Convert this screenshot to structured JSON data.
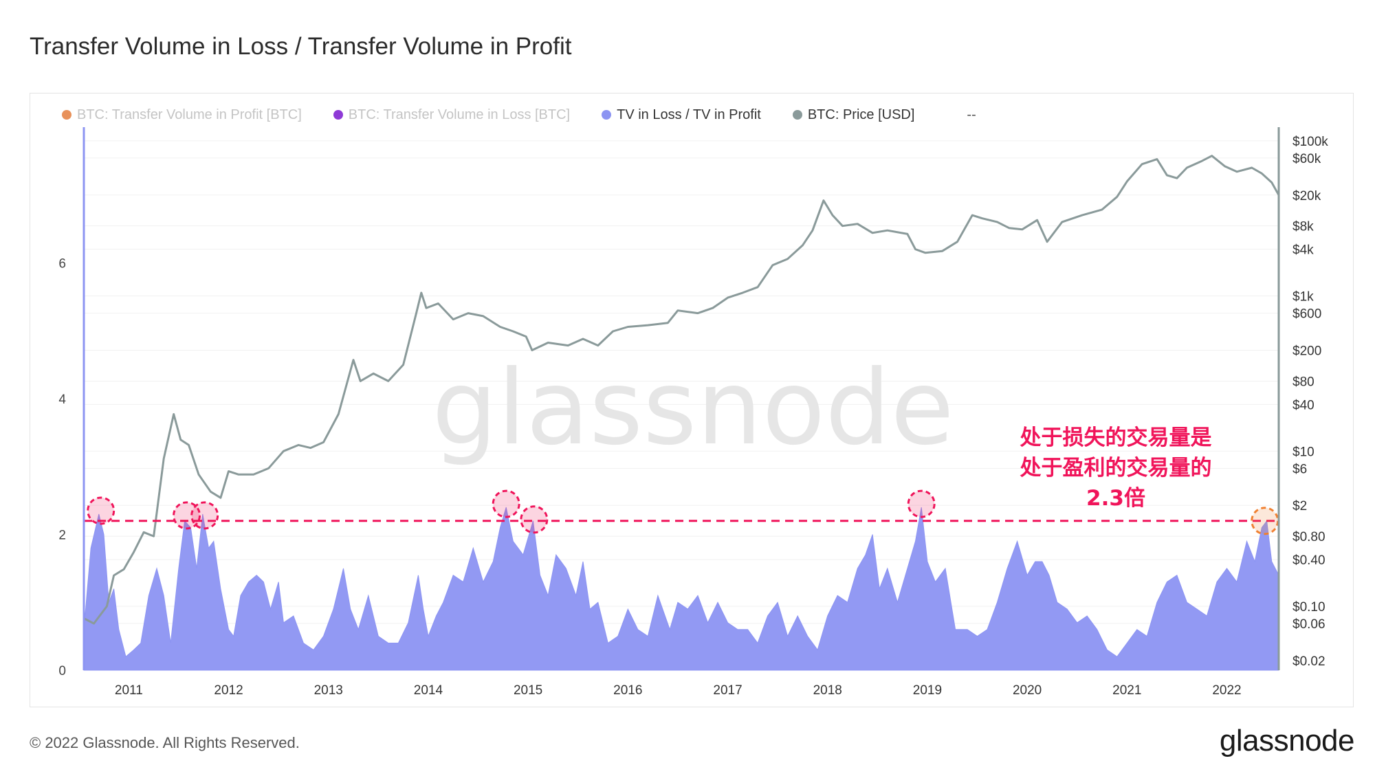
{
  "header": {
    "title": "Transfer Volume in Loss / Transfer Volume in Profit"
  },
  "legend": {
    "items": [
      {
        "label": "BTC: Transfer Volume in Profit [BTC]",
        "color": "#e8915a",
        "active": false
      },
      {
        "label": "BTC: Transfer Volume in Loss [BTC]",
        "color": "#8e3ad6",
        "active": false
      },
      {
        "label": "TV in Loss / TV in Profit",
        "color": "#8c94f2",
        "active": true
      },
      {
        "label": "BTC: Price [USD]",
        "color": "#8a9a9a",
        "active": true
      }
    ],
    "extra": "--"
  },
  "footer": {
    "copyright": "© 2022 Glassnode. All Rights Reserved.",
    "logo": "glassnode"
  },
  "watermark": "glassnode",
  "annotation": {
    "lines": [
      "处于损失的交易量是",
      "处于盈利的交易量的",
      "2.3倍"
    ],
    "color": "#f0145a"
  },
  "chart_data": {
    "type": "area",
    "x_range": [
      2010.55,
      2022.52
    ],
    "x_ticks": [
      "2011",
      "2012",
      "2013",
      "2014",
      "2015",
      "2016",
      "2017",
      "2018",
      "2019",
      "2020",
      "2021",
      "2022"
    ],
    "y_left": {
      "ticks": [
        "0",
        "2",
        "4",
        "6"
      ],
      "ylim": [
        0,
        8.0
      ]
    },
    "y_right": {
      "scale": "log",
      "ticks": [
        "$100k",
        "$60k",
        "$20k",
        "$8k",
        "$4k",
        "$1k",
        "$600",
        "$200",
        "$80",
        "$40",
        "$10",
        "$6",
        "$2",
        "$0.80",
        "$0.40",
        "$0.10",
        "$0.06",
        "$0.02"
      ]
    },
    "reference_line": {
      "y": 2.2,
      "style": "dashed",
      "color": "#f0145a"
    },
    "highlight_circles": [
      {
        "x": 2010.72,
        "y": 2.35,
        "color": "#f0145a"
      },
      {
        "x": 2011.58,
        "y": 2.28,
        "color": "#f0145a"
      },
      {
        "x": 2011.76,
        "y": 2.28,
        "color": "#f0145a"
      },
      {
        "x": 2014.78,
        "y": 2.45,
        "color": "#f0145a"
      },
      {
        "x": 2015.06,
        "y": 2.22,
        "color": "#f0145a"
      },
      {
        "x": 2018.94,
        "y": 2.45,
        "color": "#f0145a"
      },
      {
        "x": 2022.38,
        "y": 2.2,
        "color": "#f08030"
      }
    ],
    "series": [
      {
        "name": "TV in Loss / TV in Profit",
        "axis": "left",
        "color": "#8c94f2",
        "points": [
          [
            2010.55,
            0.6
          ],
          [
            2010.62,
            1.8
          ],
          [
            2010.7,
            2.3
          ],
          [
            2010.75,
            2.0
          ],
          [
            2010.8,
            1.0
          ],
          [
            2010.85,
            1.2
          ],
          [
            2010.9,
            0.6
          ],
          [
            2010.97,
            0.2
          ],
          [
            2011.05,
            0.3
          ],
          [
            2011.12,
            0.4
          ],
          [
            2011.2,
            1.1
          ],
          [
            2011.28,
            1.5
          ],
          [
            2011.35,
            1.1
          ],
          [
            2011.42,
            0.4
          ],
          [
            2011.5,
            1.5
          ],
          [
            2011.56,
            2.2
          ],
          [
            2011.62,
            2.1
          ],
          [
            2011.68,
            1.5
          ],
          [
            2011.74,
            2.3
          ],
          [
            2011.8,
            1.8
          ],
          [
            2011.85,
            1.9
          ],
          [
            2011.92,
            1.2
          ],
          [
            2012.0,
            0.6
          ],
          [
            2012.05,
            0.5
          ],
          [
            2012.12,
            1.1
          ],
          [
            2012.2,
            1.3
          ],
          [
            2012.28,
            1.4
          ],
          [
            2012.35,
            1.3
          ],
          [
            2012.42,
            0.9
          ],
          [
            2012.5,
            1.3
          ],
          [
            2012.55,
            0.7
          ],
          [
            2012.65,
            0.8
          ],
          [
            2012.75,
            0.4
          ],
          [
            2012.85,
            0.3
          ],
          [
            2012.95,
            0.5
          ],
          [
            2013.05,
            0.9
          ],
          [
            2013.15,
            1.5
          ],
          [
            2013.22,
            0.9
          ],
          [
            2013.3,
            0.6
          ],
          [
            2013.4,
            1.1
          ],
          [
            2013.5,
            0.5
          ],
          [
            2013.6,
            0.4
          ],
          [
            2013.7,
            0.4
          ],
          [
            2013.8,
            0.7
          ],
          [
            2013.9,
            1.4
          ],
          [
            2013.95,
            0.9
          ],
          [
            2014.0,
            0.5
          ],
          [
            2014.08,
            0.8
          ],
          [
            2014.15,
            1.0
          ],
          [
            2014.25,
            1.4
          ],
          [
            2014.35,
            1.3
          ],
          [
            2014.45,
            1.8
          ],
          [
            2014.55,
            1.3
          ],
          [
            2014.65,
            1.6
          ],
          [
            2014.72,
            2.1
          ],
          [
            2014.78,
            2.4
          ],
          [
            2014.85,
            1.9
          ],
          [
            2014.95,
            1.7
          ],
          [
            2015.05,
            2.2
          ],
          [
            2015.12,
            1.4
          ],
          [
            2015.2,
            1.1
          ],
          [
            2015.28,
            1.7
          ],
          [
            2015.38,
            1.5
          ],
          [
            2015.48,
            1.1
          ],
          [
            2015.55,
            1.6
          ],
          [
            2015.62,
            0.9
          ],
          [
            2015.7,
            1.0
          ],
          [
            2015.8,
            0.4
          ],
          [
            2015.9,
            0.5
          ],
          [
            2016.0,
            0.9
          ],
          [
            2016.1,
            0.6
          ],
          [
            2016.2,
            0.5
          ],
          [
            2016.3,
            1.1
          ],
          [
            2016.42,
            0.6
          ],
          [
            2016.5,
            1.0
          ],
          [
            2016.6,
            0.9
          ],
          [
            2016.7,
            1.1
          ],
          [
            2016.8,
            0.7
          ],
          [
            2016.9,
            1.0
          ],
          [
            2017.0,
            0.7
          ],
          [
            2017.1,
            0.6
          ],
          [
            2017.2,
            0.6
          ],
          [
            2017.3,
            0.4
          ],
          [
            2017.4,
            0.8
          ],
          [
            2017.5,
            1.0
          ],
          [
            2017.6,
            0.5
          ],
          [
            2017.7,
            0.8
          ],
          [
            2017.8,
            0.5
          ],
          [
            2017.9,
            0.3
          ],
          [
            2018.0,
            0.8
          ],
          [
            2018.1,
            1.1
          ],
          [
            2018.2,
            1.0
          ],
          [
            2018.3,
            1.5
          ],
          [
            2018.38,
            1.7
          ],
          [
            2018.45,
            2.0
          ],
          [
            2018.52,
            1.2
          ],
          [
            2018.6,
            1.5
          ],
          [
            2018.7,
            1.0
          ],
          [
            2018.8,
            1.5
          ],
          [
            2018.88,
            1.9
          ],
          [
            2018.94,
            2.4
          ],
          [
            2019.0,
            1.6
          ],
          [
            2019.08,
            1.3
          ],
          [
            2019.18,
            1.5
          ],
          [
            2019.28,
            0.6
          ],
          [
            2019.4,
            0.6
          ],
          [
            2019.5,
            0.5
          ],
          [
            2019.6,
            0.6
          ],
          [
            2019.7,
            1.0
          ],
          [
            2019.8,
            1.5
          ],
          [
            2019.9,
            1.9
          ],
          [
            2020.0,
            1.4
          ],
          [
            2020.08,
            1.6
          ],
          [
            2020.15,
            1.6
          ],
          [
            2020.22,
            1.4
          ],
          [
            2020.3,
            1.0
          ],
          [
            2020.4,
            0.9
          ],
          [
            2020.5,
            0.7
          ],
          [
            2020.6,
            0.8
          ],
          [
            2020.7,
            0.6
          ],
          [
            2020.8,
            0.3
          ],
          [
            2020.9,
            0.2
          ],
          [
            2021.0,
            0.4
          ],
          [
            2021.1,
            0.6
          ],
          [
            2021.2,
            0.5
          ],
          [
            2021.3,
            1.0
          ],
          [
            2021.4,
            1.3
          ],
          [
            2021.5,
            1.4
          ],
          [
            2021.6,
            1.0
          ],
          [
            2021.7,
            0.9
          ],
          [
            2021.8,
            0.8
          ],
          [
            2021.9,
            1.3
          ],
          [
            2022.0,
            1.5
          ],
          [
            2022.1,
            1.3
          ],
          [
            2022.2,
            1.9
          ],
          [
            2022.28,
            1.6
          ],
          [
            2022.35,
            2.1
          ],
          [
            2022.4,
            2.2
          ],
          [
            2022.45,
            1.6
          ],
          [
            2022.52,
            1.4
          ]
        ]
      },
      {
        "name": "BTC: Price [USD]",
        "axis": "right",
        "color": "#8a9a9a",
        "points": [
          [
            2010.55,
            0.07
          ],
          [
            2010.65,
            0.06
          ],
          [
            2010.78,
            0.1
          ],
          [
            2010.85,
            0.25
          ],
          [
            2010.95,
            0.3
          ],
          [
            2011.05,
            0.5
          ],
          [
            2011.15,
            0.9
          ],
          [
            2011.25,
            0.8
          ],
          [
            2011.35,
            8.0
          ],
          [
            2011.45,
            30.0
          ],
          [
            2011.52,
            14.0
          ],
          [
            2011.6,
            12.0
          ],
          [
            2011.7,
            5.0
          ],
          [
            2011.82,
            3.0
          ],
          [
            2011.92,
            2.5
          ],
          [
            2012.0,
            5.5
          ],
          [
            2012.1,
            5.0
          ],
          [
            2012.25,
            5.0
          ],
          [
            2012.4,
            6.0
          ],
          [
            2012.55,
            10.0
          ],
          [
            2012.7,
            12.0
          ],
          [
            2012.82,
            11.0
          ],
          [
            2012.95,
            13.0
          ],
          [
            2013.1,
            30.0
          ],
          [
            2013.25,
            150.0
          ],
          [
            2013.32,
            80.0
          ],
          [
            2013.45,
            100.0
          ],
          [
            2013.6,
            80.0
          ],
          [
            2013.75,
            130.0
          ],
          [
            2013.88,
            600.0
          ],
          [
            2013.93,
            1100.0
          ],
          [
            2013.98,
            700.0
          ],
          [
            2014.1,
            800.0
          ],
          [
            2014.25,
            500.0
          ],
          [
            2014.4,
            600.0
          ],
          [
            2014.55,
            550.0
          ],
          [
            2014.72,
            400.0
          ],
          [
            2014.85,
            350.0
          ],
          [
            2014.98,
            300.0
          ],
          [
            2015.04,
            200.0
          ],
          [
            2015.2,
            250.0
          ],
          [
            2015.4,
            230.0
          ],
          [
            2015.55,
            280.0
          ],
          [
            2015.7,
            230.0
          ],
          [
            2015.85,
            350.0
          ],
          [
            2016.0,
            400.0
          ],
          [
            2016.2,
            420.0
          ],
          [
            2016.4,
            450.0
          ],
          [
            2016.5,
            650.0
          ],
          [
            2016.7,
            600.0
          ],
          [
            2016.85,
            700.0
          ],
          [
            2017.0,
            950.0
          ],
          [
            2017.15,
            1100.0
          ],
          [
            2017.3,
            1300.0
          ],
          [
            2017.45,
            2500.0
          ],
          [
            2017.6,
            3000.0
          ],
          [
            2017.75,
            4500.0
          ],
          [
            2017.85,
            7000.0
          ],
          [
            2017.96,
            17000.0
          ],
          [
            2018.05,
            11000.0
          ],
          [
            2018.15,
            8000.0
          ],
          [
            2018.3,
            8500.0
          ],
          [
            2018.45,
            6500.0
          ],
          [
            2018.6,
            7000.0
          ],
          [
            2018.8,
            6300.0
          ],
          [
            2018.88,
            4000.0
          ],
          [
            2018.98,
            3600.0
          ],
          [
            2019.15,
            3800.0
          ],
          [
            2019.3,
            5000.0
          ],
          [
            2019.45,
            11000.0
          ],
          [
            2019.55,
            10000.0
          ],
          [
            2019.7,
            9000.0
          ],
          [
            2019.82,
            7500.0
          ],
          [
            2019.95,
            7200.0
          ],
          [
            2020.1,
            9500.0
          ],
          [
            2020.2,
            5000.0
          ],
          [
            2020.35,
            9000.0
          ],
          [
            2020.55,
            11000.0
          ],
          [
            2020.75,
            13000.0
          ],
          [
            2020.9,
            19000.0
          ],
          [
            2021.0,
            30000.0
          ],
          [
            2021.15,
            50000.0
          ],
          [
            2021.3,
            58000.0
          ],
          [
            2021.4,
            36000.0
          ],
          [
            2021.5,
            33000.0
          ],
          [
            2021.6,
            45000.0
          ],
          [
            2021.75,
            55000.0
          ],
          [
            2021.85,
            64000.0
          ],
          [
            2021.98,
            47000.0
          ],
          [
            2022.1,
            40000.0
          ],
          [
            2022.25,
            45000.0
          ],
          [
            2022.35,
            38000.0
          ],
          [
            2022.45,
            29000.0
          ],
          [
            2022.52,
            20000.0
          ]
        ]
      }
    ]
  }
}
